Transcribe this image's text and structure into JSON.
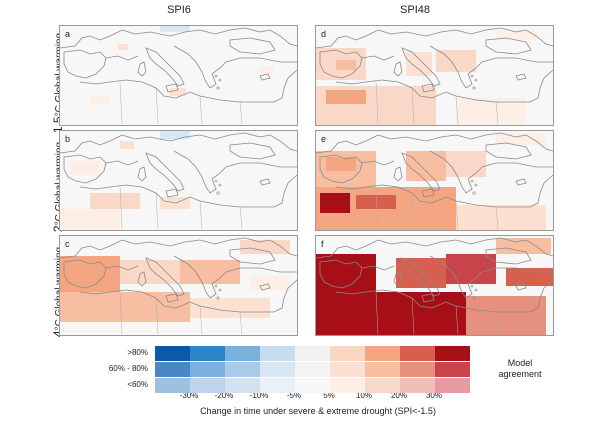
{
  "columns": [
    "SPI6",
    "SPI48"
  ],
  "rows": [
    {
      "value": "1.5",
      "unit": "°C",
      "label": " Global warming"
    },
    {
      "value": "2",
      "unit": "°C",
      "label": " Global warming"
    },
    {
      "value": "4",
      "unit": "°C",
      "label": " Global warming"
    }
  ],
  "panels": [
    "a",
    "d",
    "b",
    "e",
    "c",
    "f"
  ],
  "legend": {
    "row_labels": [
      ">80%",
      "60% - 80%",
      "<60%"
    ],
    "ticks": [
      "-30%",
      "-20%",
      "-10%",
      "-5%",
      "5%",
      "10%",
      "20%",
      "30%"
    ],
    "caption": "Change in time under severe & extreme drought (SPI<-1.5)",
    "agreement_line1": "Model",
    "agreement_line2": "agreement",
    "colors": [
      [
        "#0b59a7",
        "#2a86c6",
        "#79b1dc",
        "#c7dcef",
        "#f2f2f2",
        "#fbd6c2",
        "#f4a582",
        "#d6604d",
        "#a50f15"
      ],
      [
        "#4a87c4",
        "#7fb0dc",
        "#a9cbe8",
        "#d8e7f4",
        "#f4f4f4",
        "#fce0d1",
        "#f7bea2",
        "#e6907f",
        "#c8434a"
      ],
      [
        "#9dbfe0",
        "#bcd5ec",
        "#d2e2f1",
        "#e8f0f8",
        "#f7f7f7",
        "#fdeee6",
        "#fad8c7",
        "#f1bfb4",
        "#e79aa0"
      ]
    ]
  }
}
